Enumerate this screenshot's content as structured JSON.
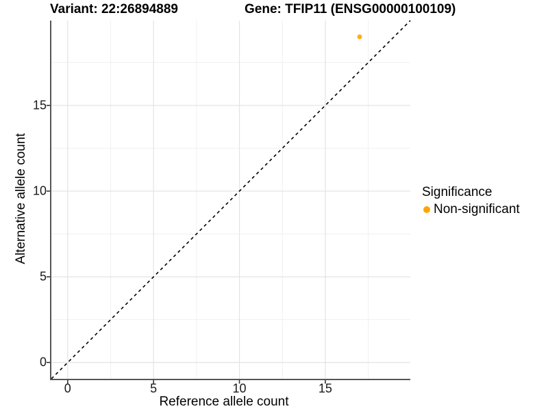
{
  "chart_data": {
    "type": "scatter",
    "title_left": "Variant: 22:26894889",
    "title_right": "Gene: TFIP11 (ENSG00000100109)",
    "xlabel": "Reference allele count",
    "ylabel": "Alternative allele count",
    "xlim": [
      -0.95,
      19.95
    ],
    "ylim": [
      -0.95,
      19.95
    ],
    "x_ticks": [
      0,
      5,
      10,
      15
    ],
    "y_ticks": [
      0,
      5,
      10,
      15
    ],
    "minor_gridlines": [
      2.5,
      7.5,
      12.5,
      17.5
    ],
    "grid": "on",
    "points": [
      {
        "x": 17,
        "y": 19,
        "series": "Non-significant",
        "color": "#FFA500"
      }
    ],
    "identity_line": {
      "style": "dashed",
      "color": "#000000",
      "slope": 1,
      "intercept": 0
    },
    "legend": {
      "title": "Significance",
      "position": "right",
      "items": [
        {
          "label": "Non-significant",
          "color": "#FFA500",
          "marker": "circle"
        }
      ]
    },
    "colors": {
      "grid_major": "#e3e3e3",
      "grid_minor": "#f0f0f0",
      "axis_line": "#555555",
      "tick_mark": "#333333",
      "point": "#FFA500",
      "background": "#ffffff"
    }
  }
}
